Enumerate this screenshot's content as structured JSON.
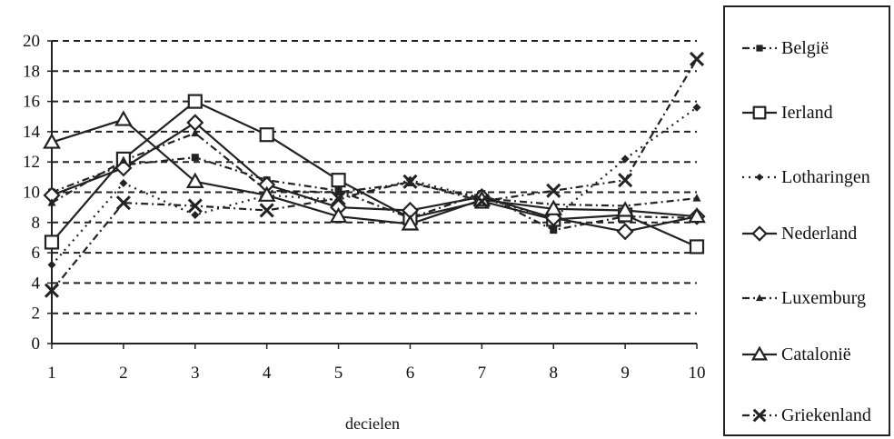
{
  "chart_data": {
    "type": "line",
    "xlabel": "decielen",
    "ylabel": "",
    "x": [
      1,
      2,
      3,
      4,
      5,
      6,
      7,
      8,
      9,
      10
    ],
    "ylim": [
      0,
      20
    ],
    "yticks": [
      0,
      2,
      4,
      6,
      8,
      10,
      12,
      14,
      16,
      18,
      20
    ],
    "grid": "horizontal dashed",
    "legend_position": "right",
    "series": [
      {
        "name": "België",
        "marker": "filled-square",
        "line": "dash-dot",
        "values": [
          10.0,
          11.8,
          12.3,
          10.8,
          10.1,
          8.3,
          9.9,
          7.5,
          8.4,
          8.3
        ]
      },
      {
        "name": "Ierland",
        "marker": "open-square",
        "line": "solid",
        "values": [
          6.7,
          12.2,
          16.0,
          13.8,
          10.8,
          8.3,
          9.4,
          8.2,
          8.5,
          6.4
        ]
      },
      {
        "name": "Lotharingen",
        "marker": "small-diamond",
        "line": "dotted",
        "values": [
          5.2,
          10.6,
          8.5,
          9.8,
          9.5,
          10.8,
          9.6,
          8.3,
          12.2,
          15.6
        ]
      },
      {
        "name": "Nederland",
        "marker": "open-diamond",
        "line": "solid",
        "values": [
          9.8,
          11.6,
          14.6,
          10.5,
          9.0,
          8.8,
          9.7,
          8.3,
          7.4,
          8.4
        ]
      },
      {
        "name": "Luxemburg",
        "marker": "small-triangle",
        "line": "dash-dot",
        "values": [
          9.3,
          12.1,
          13.9,
          10.1,
          10.0,
          10.6,
          9.6,
          9.2,
          9.1,
          9.6
        ]
      },
      {
        "name": "Catalonië",
        "marker": "open-triangle",
        "line": "solid",
        "values": [
          13.3,
          14.8,
          10.7,
          9.8,
          8.4,
          7.9,
          9.5,
          8.9,
          8.8,
          8.4
        ]
      },
      {
        "name": "Griekenland",
        "marker": "x",
        "line": "dash-dot",
        "values": [
          3.5,
          9.3,
          9.1,
          8.8,
          9.6,
          10.7,
          9.4,
          10.1,
          10.8,
          18.8
        ]
      }
    ]
  }
}
